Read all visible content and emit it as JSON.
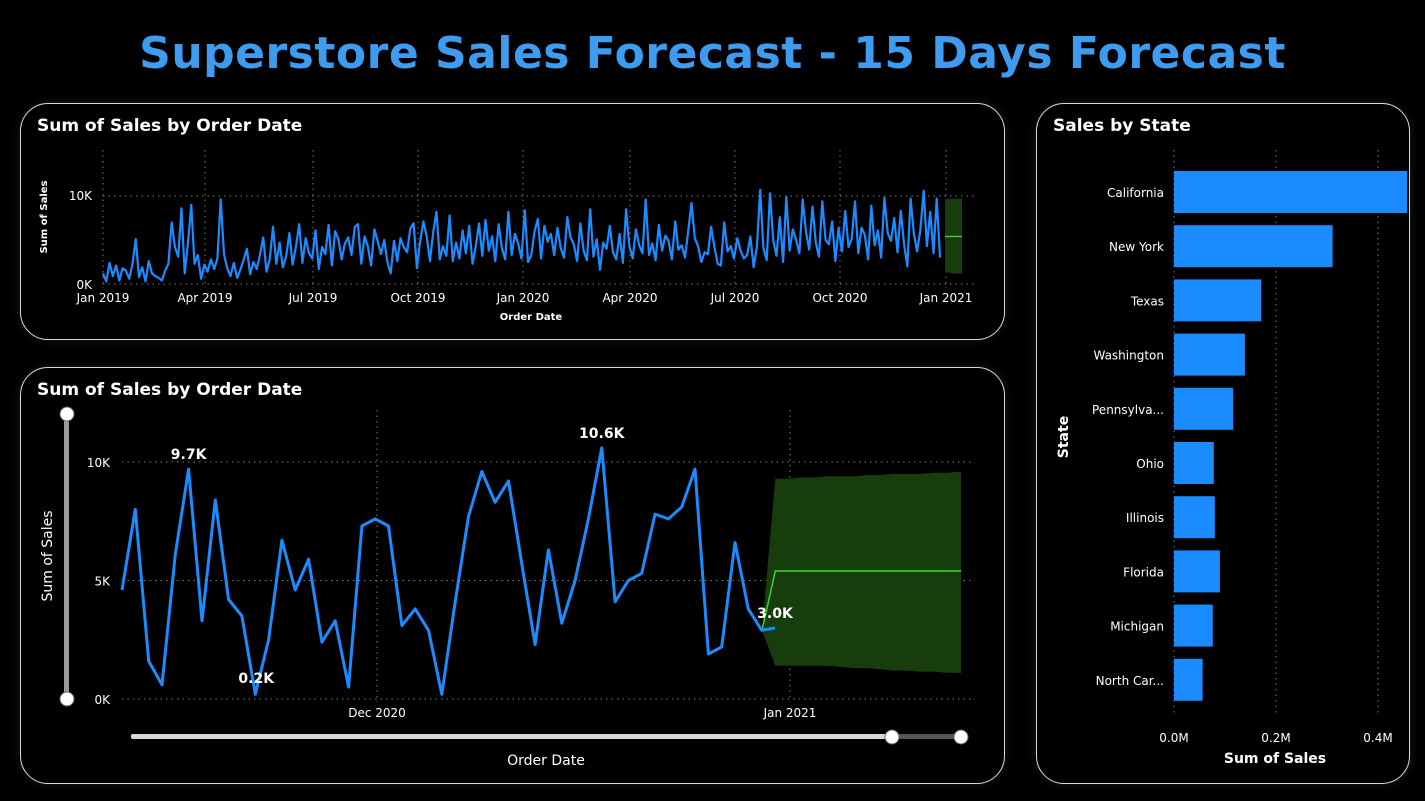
{
  "page": {
    "title": "Superstore Sales Forecast - 15 Days Forecast"
  },
  "colors": {
    "series": "#1a8cff",
    "forecast_line": "#3cdc28",
    "forecast_band": "#173d0c",
    "title": "#3d9bf0",
    "grid": "#7a7a7a"
  },
  "chart_data": [
    {
      "id": "overview",
      "type": "line",
      "title": "Sum of Sales by Order Date",
      "xlabel": "Order Date",
      "ylabel": "Sum of Sales",
      "x_ticks": [
        "Jan 2019",
        "Apr 2019",
        "Jul 2019",
        "Oct 2019",
        "Jan 2020",
        "Apr 2020",
        "Jul 2020",
        "Oct 2020",
        "Jan 2021"
      ],
      "y_ticks": [
        "0K",
        "10K"
      ],
      "ylim": [
        0,
        10000
      ],
      "grid": true,
      "series": [
        {
          "values": [
            1200,
            300,
            2400,
            900,
            2100,
            400,
            1800,
            1500,
            600,
            2200,
            5100,
            800,
            1900,
            300,
            2600,
            1200,
            900,
            700,
            400,
            1500,
            2300,
            7000,
            4200,
            3100,
            8600,
            1200,
            4700,
            9000,
            2300,
            3300,
            600,
            2200,
            1400,
            2800,
            1700,
            2900,
            9600,
            3400,
            1800,
            900,
            2400,
            700,
            1600,
            2700,
            4000,
            1100,
            2500,
            1700,
            3300,
            5300,
            1400,
            2800,
            6500,
            2300,
            4700,
            1900,
            3100,
            5800,
            2200,
            4200,
            6800,
            2400,
            5200,
            3500,
            2900,
            6100,
            1700,
            4200,
            3400,
            6700,
            2100,
            6000,
            5100,
            2800,
            4600,
            5300,
            3300,
            6500,
            6800,
            2300,
            5400,
            4300,
            2100,
            6200,
            4900,
            3400,
            5000,
            2500,
            1200,
            4900,
            2600,
            5200,
            4200,
            3600,
            6300,
            6900,
            1800,
            4800,
            7100,
            5400,
            2600,
            5900,
            8200,
            2800,
            4300,
            3200,
            7800,
            2600,
            4700,
            2900,
            6100,
            3500,
            6600,
            2300,
            4200,
            6900,
            3200,
            7300,
            3800,
            5400,
            2600,
            6800,
            4100,
            2800,
            8200,
            3300,
            5700,
            4600,
            2900,
            8400,
            2500,
            3300,
            6000,
            7400,
            2900,
            6600,
            4800,
            5700,
            3300,
            6400,
            4100,
            3000,
            7600,
            5300,
            4500,
            2600,
            6900,
            3800,
            2700,
            8500,
            3100,
            5100,
            1600,
            4700,
            4000,
            6600,
            3600,
            2800,
            5700,
            2400,
            8500,
            4300,
            2900,
            6200,
            4400,
            3500,
            9600,
            3300,
            4600,
            2700,
            6700,
            3800,
            5500,
            4900,
            2800,
            7100,
            3900,
            4400,
            3000,
            6000,
            9200,
            5200,
            4300,
            2500,
            3600,
            3400,
            6500,
            4200,
            2300,
            2100,
            7000,
            3700,
            4300,
            2900,
            5200,
            3800,
            2900,
            3300,
            5400,
            1900,
            4200,
            10700,
            4100,
            2700,
            10300,
            4900,
            3200,
            7600,
            2500,
            9900,
            3800,
            6200,
            5000,
            3500,
            9600,
            6000,
            3900,
            8800,
            4700,
            3100,
            9400,
            5000,
            4500,
            7100,
            2600,
            6400,
            3700,
            8300,
            4200,
            5100,
            9400,
            3500,
            6400,
            5600,
            2800,
            8900,
            4400,
            6100,
            3000,
            9800,
            5800,
            4900,
            7500,
            3600,
            8300,
            4600,
            2000,
            9700,
            5800,
            3700,
            6200,
            10600,
            4300,
            8200,
            3500,
            9700,
            3000
          ]
        }
      ],
      "forecast": {
        "values": [
          5400,
          5400,
          5400,
          5400,
          5400
        ],
        "lower": [
          1300,
          1300,
          1200,
          1200,
          1200
        ],
        "upper": [
          9600,
          9700,
          9700,
          9700,
          9700
        ]
      }
    },
    {
      "id": "detail",
      "type": "line",
      "title": "Sum of Sales by Order Date",
      "xlabel": "Order Date",
      "ylabel": "Sum of Sales",
      "x_ticks": [
        "Dec 2020",
        "Jan 2021"
      ],
      "y_ticks": [
        "0K",
        "5K",
        "10K"
      ],
      "ylim": [
        0,
        10000
      ],
      "grid": true,
      "series": [
        {
          "values": [
            4600,
            8000,
            1600,
            600,
            6100,
            9700,
            3300,
            8400,
            4200,
            3500,
            200,
            2500,
            6700,
            4600,
            5900,
            2400,
            3300,
            500,
            7300,
            7600,
            7300,
            3100,
            3800,
            2900,
            200,
            4100,
            7700,
            9600,
            8300,
            9200,
            5700,
            2300,
            6300,
            3200,
            5000,
            7600,
            10600,
            4100,
            5000,
            5300,
            7800,
            7600,
            8100,
            9700,
            1900,
            2200,
            6600,
            3800,
            2900,
            3000
          ]
        }
      ],
      "forecast": {
        "values": [
          2900,
          5400,
          5400,
          5400,
          5400,
          5400,
          5400,
          5400,
          5400,
          5400,
          5400,
          5400,
          5400,
          5400,
          5400,
          5400
        ],
        "lower": [
          2900,
          1400,
          1400,
          1400,
          1400,
          1400,
          1350,
          1300,
          1300,
          1250,
          1200,
          1200,
          1150,
          1150,
          1100,
          1100
        ],
        "upper": [
          2900,
          9300,
          9300,
          9350,
          9350,
          9400,
          9400,
          9400,
          9450,
          9450,
          9500,
          9500,
          9500,
          9550,
          9550,
          9600
        ]
      },
      "data_labels": [
        {
          "index": 5,
          "text": "9.7K"
        },
        {
          "index": 10,
          "text": "0.2K"
        },
        {
          "index": 36,
          "text": "10.6K"
        },
        {
          "index": 49,
          "text": "3.0K"
        }
      ]
    },
    {
      "id": "state",
      "type": "bar",
      "orientation": "horizontal",
      "title": "Sales by State",
      "xlabel": "Sum of Sales",
      "ylabel": "State",
      "categories": [
        "California",
        "New York",
        "Texas",
        "Washington",
        "Pennsylva...",
        "Ohio",
        "Illinois",
        "Florida",
        "Michigan",
        "North Car..."
      ],
      "values": [
        457000,
        311000,
        171000,
        139000,
        116000,
        78000,
        80000,
        90000,
        76000,
        56000
      ],
      "x_ticks": [
        "0.0M",
        "0.2M",
        "0.4M"
      ],
      "xlim": [
        0,
        0.4
      ],
      "grid": true
    }
  ]
}
